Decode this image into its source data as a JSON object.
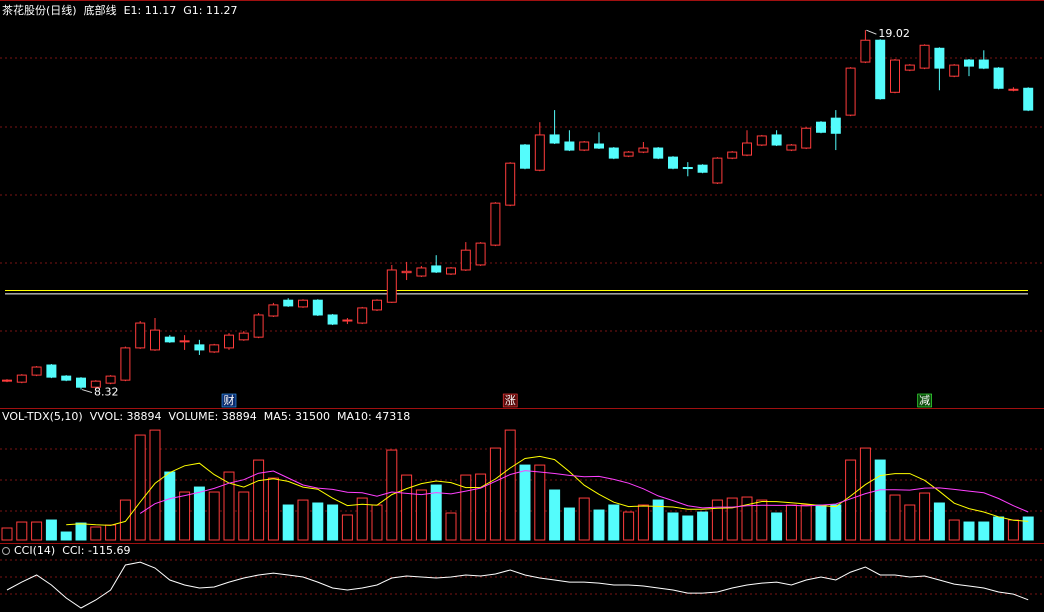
{
  "chart_data": [
    {
      "type": "candlestick",
      "title": "茶花股份(日线)",
      "indicator_name": "底部线",
      "up_color": "#ff3c3c",
      "down_color": "#54fcfc",
      "ylim": [
        7.86,
        19.62
      ],
      "open": [
        8.57,
        8.54,
        8.75,
        9.05,
        8.72,
        8.66,
        8.39,
        8.51,
        8.6,
        9.56,
        9.5,
        9.88,
        9.74,
        9.65,
        9.44,
        9.56,
        9.8,
        9.88,
        10.51,
        10.98,
        10.78,
        10.98,
        10.54,
        10.36,
        10.3,
        10.69,
        10.92,
        11.8,
        11.7,
        12.0,
        11.76,
        11.88,
        12.03,
        12.62,
        13.81,
        15.6,
        14.85,
        15.9,
        15.69,
        15.45,
        15.63,
        15.51,
        15.27,
        15.39,
        15.51,
        15.24,
        14.93,
        15.0,
        14.47,
        15.21,
        15.3,
        15.6,
        15.9,
        15.45,
        15.51,
        16.28,
        16.4,
        16.49,
        18.07,
        18.72,
        17.17,
        17.83,
        17.89,
        18.48,
        17.65,
        18.13,
        18.13,
        17.89,
        17.23,
        17.29
      ],
      "high": [
        8.63,
        8.78,
        9.02,
        9.08,
        8.75,
        8.69,
        8.6,
        8.75,
        9.6,
        10.36,
        10.45,
        9.94,
        9.94,
        9.8,
        9.68,
        10.0,
        10.06,
        10.6,
        10.9,
        11.04,
        11.01,
        11.01,
        10.57,
        10.45,
        10.78,
        11.01,
        12.03,
        12.12,
        12.0,
        12.32,
        11.97,
        12.71,
        12.71,
        13.9,
        15.09,
        15.63,
        16.28,
        16.64,
        16.04,
        15.72,
        15.98,
        15.54,
        15.42,
        15.69,
        15.54,
        15.27,
        15.09,
        15.03,
        15.24,
        15.42,
        16.04,
        15.9,
        16.04,
        15.63,
        16.13,
        16.31,
        16.64,
        17.92,
        19.02,
        18.75,
        18.16,
        18.01,
        18.6,
        18.51,
        18.01,
        18.16,
        18.42,
        17.92,
        17.32,
        17.32
      ],
      "low": [
        8.54,
        8.51,
        8.72,
        8.66,
        8.57,
        8.32,
        8.36,
        8.48,
        8.57,
        9.53,
        9.47,
        9.71,
        9.5,
        9.35,
        9.41,
        9.5,
        9.77,
        9.85,
        10.48,
        10.78,
        10.75,
        10.51,
        10.24,
        10.27,
        10.27,
        10.66,
        10.9,
        11.58,
        11.67,
        11.79,
        11.73,
        11.85,
        12.0,
        12.59,
        13.78,
        14.88,
        14.82,
        15.63,
        15.42,
        15.42,
        15.48,
        15.18,
        15.24,
        15.36,
        15.18,
        14.88,
        14.67,
        14.76,
        14.44,
        15.18,
        15.27,
        15.57,
        15.57,
        15.42,
        15.48,
        15.95,
        15.45,
        16.46,
        18.04,
        16.95,
        17.14,
        17.8,
        17.86,
        17.23,
        17.62,
        17.65,
        17.86,
        17.26,
        17.2,
        16.61
      ],
      "close": [
        8.6,
        8.75,
        8.99,
        8.69,
        8.6,
        8.39,
        8.57,
        8.72,
        9.56,
        10.3,
        10.09,
        9.74,
        9.77,
        9.5,
        9.65,
        9.94,
        10.0,
        10.54,
        10.84,
        10.81,
        10.98,
        10.54,
        10.27,
        10.39,
        10.75,
        10.98,
        11.88,
        11.84,
        11.94,
        11.82,
        11.94,
        12.47,
        12.68,
        13.87,
        15.06,
        14.91,
        15.9,
        15.66,
        15.45,
        15.69,
        15.51,
        15.21,
        15.39,
        15.51,
        15.21,
        14.91,
        14.91,
        14.79,
        15.21,
        15.39,
        15.66,
        15.87,
        15.6,
        15.6,
        16.1,
        15.98,
        15.95,
        17.89,
        18.72,
        16.98,
        18.13,
        17.98,
        18.57,
        17.89,
        17.98,
        17.95,
        17.89,
        17.29,
        17.26,
        16.64
      ],
      "max_label": 19.02,
      "min_label": 8.32,
      "lines": [
        {
          "value": 11.17,
          "label": "E1: 11.17",
          "color": "#ffffff"
        },
        {
          "value": 11.27,
          "label": "G1: 11.27",
          "color": "#ffff00"
        }
      ],
      "events": [
        null,
        null,
        null,
        null,
        null,
        null,
        null,
        null,
        null,
        null,
        null,
        null,
        null,
        null,
        null,
        {
          "label": "财",
          "color": "#3aa0ff",
          "background": "#0a2a6a"
        },
        null,
        null,
        null,
        null,
        null,
        null,
        null,
        null,
        null,
        null,
        null,
        null,
        null,
        null,
        null,
        null,
        null,
        null,
        {
          "label": "涨",
          "color": "#ff4040",
          "background": "#5a0a0a"
        },
        null,
        null,
        null,
        null,
        null,
        null,
        null,
        null,
        null,
        null,
        null,
        null,
        null,
        null,
        null,
        null,
        null,
        null,
        null,
        null,
        null,
        null,
        null,
        null,
        null,
        null,
        null,
        {
          "label": "减",
          "color": "#40ff40",
          "background": "#0a4a0a"
        },
        null,
        null,
        null,
        null,
        null,
        null,
        null
      ]
    },
    {
      "type": "volume",
      "title": "VOL-TDX(5,10)",
      "ylim": [
        0,
        220000
      ],
      "readouts": [
        {
          "label": "VVOL: 38894",
          "value": 38894,
          "color": "#ffffff"
        },
        {
          "label": "VOLUME: 38894",
          "value": 38894,
          "color": "#ffff60"
        },
        {
          "label": "MA5: 31500",
          "value": 31500,
          "color": "#ffff00"
        },
        {
          "label": "MA10: 47318",
          "value": 47318,
          "color": "#ff40ff"
        }
      ],
      "values": [
        20300,
        30400,
        30400,
        33800,
        13500,
        28700,
        22000,
        25400,
        67600,
        177600,
        186000,
        115000,
        81200,
        89600,
        81200,
        115000,
        81200,
        135300,
        104800,
        59200,
        67600,
        62600,
        59200,
        42300,
        71000,
        59200,
        152200,
        109900,
        84600,
        93000,
        45700,
        109900,
        111600,
        155600,
        186000,
        126800,
        126800,
        84600,
        54100,
        71000,
        50700,
        59200,
        47300,
        59200,
        67600,
        45700,
        40600,
        47300,
        67600,
        71000,
        72700,
        67600,
        45700,
        59200,
        59200,
        59200,
        59200,
        135300,
        155600,
        135300,
        76100,
        59200,
        79500,
        62600,
        33800,
        30400,
        30400,
        38900,
        33800,
        38894
      ],
      "series": [
        {
          "color": "#ffff00",
          "values": [
            null,
            null,
            null,
            null,
            25700,
            27400,
            25700,
            24700,
            31400,
            64300,
            95700,
            114300,
            125500,
            129900,
            110600,
            96400,
            89600,
            100500,
            103500,
            99100,
            89600,
            85900,
            70700,
            58200,
            60500,
            58900,
            76800,
            86900,
            95400,
            99800,
            97100,
            88600,
            89000,
            103200,
            121800,
            138000,
            141400,
            136000,
            115700,
            92700,
            77400,
            63900,
            56500,
            57500,
            56800,
            55800,
            52100,
            52100,
            53800,
            54400,
            59800,
            65200,
            64900,
            63200,
            60900,
            58200,
            56500,
            74400,
            93700,
            108900,
            112300,
            112300,
            101100,
            82500,
            62200,
            53100,
            47300,
            39200,
            33500,
            31500
          ]
        },
        {
          "color": "#ff40ff",
          "values": [
            null,
            null,
            null,
            null,
            null,
            null,
            null,
            null,
            null,
            45000,
            61500,
            70000,
            75100,
            80700,
            87400,
            96100,
            102000,
            113000,
            116700,
            104900,
            93000,
            87800,
            85600,
            80800,
            79800,
            74200,
            81300,
            78800,
            76800,
            80200,
            78000,
            82700,
            87900,
            99300,
            110800,
            117500,
            115000,
            112500,
            109400,
            107200,
            107700,
            102600,
            96200,
            86600,
            74700,
            66600,
            58000,
            54300,
            55600,
            55600,
            57800,
            58700,
            58500,
            58500,
            57700,
            59000,
            60900,
            69700,
            78500,
            84900,
            85200,
            84400,
            87800,
            88100,
            85600,
            82700,
            79800,
            70200,
            58000,
            47318
          ]
        }
      ]
    },
    {
      "type": "line",
      "title": "CCI(14)",
      "ylim": [
        -227,
        382
      ],
      "readouts": [
        {
          "label": "CCI: -115.69",
          "value": -115.69,
          "color": "#ffffff"
        }
      ],
      "series": [
        {
          "color": "#ffffff",
          "values": [
            -27,
            45,
            109,
            18,
            -100,
            -191,
            -118,
            -27,
            200,
            227,
            173,
            64,
            18,
            -9,
            0,
            45,
            82,
            109,
            127,
            109,
            91,
            45,
            -9,
            -27,
            -9,
            18,
            82,
            100,
            91,
            82,
            91,
            109,
            100,
            118,
            155,
            109,
            82,
            64,
            45,
            45,
            36,
            18,
            18,
            9,
            -9,
            -27,
            -55,
            -55,
            -45,
            -9,
            18,
            36,
            45,
            18,
            64,
            91,
            64,
            136,
            182,
            109,
            109,
            91,
            100,
            64,
            27,
            9,
            -9,
            -45,
            -64,
            -115.69
          ]
        }
      ]
    }
  ]
}
